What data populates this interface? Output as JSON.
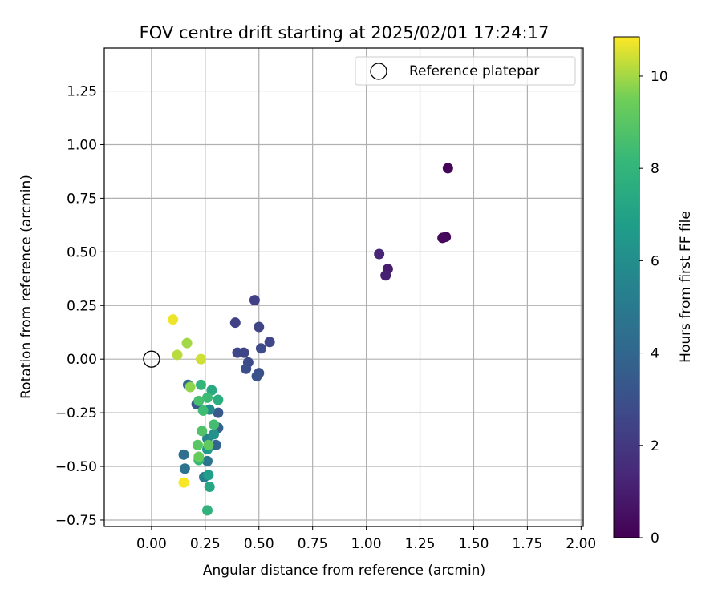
{
  "chart_data": {
    "type": "scatter",
    "title": "FOV centre drift starting at 2025/02/01 17:24:17",
    "xlabel": "Angular distance from reference (arcmin)",
    "ylabel": "Rotation from reference (arcmin)",
    "xlim": [
      -0.22,
      2.01
    ],
    "ylim": [
      -0.78,
      1.45
    ],
    "x_ticks": [
      0.0,
      0.25,
      0.5,
      0.75,
      1.0,
      1.25,
      1.5,
      1.75,
      2.0
    ],
    "x_tick_labels": [
      "0.00",
      "0.25",
      "0.50",
      "0.75",
      "1.00",
      "1.25",
      "1.50",
      "1.75",
      "2.00"
    ],
    "y_ticks": [
      -0.75,
      -0.5,
      -0.25,
      0.0,
      0.25,
      0.5,
      0.75,
      1.0,
      1.25
    ],
    "y_tick_labels": [
      "−0.75",
      "−0.50",
      "−0.25",
      "0.00",
      "0.25",
      "0.50",
      "0.75",
      "1.00",
      "1.25"
    ],
    "grid": true,
    "legend": {
      "position": "top-right",
      "entries": [
        {
          "label": "Reference platepar",
          "marker": "open-circle",
          "x": 0.0,
          "y": 0.0
        }
      ]
    },
    "colorbar": {
      "label": "Hours from first FF file",
      "colormap": "viridis",
      "range": [
        0,
        10.85
      ],
      "ticks": [
        0,
        2,
        4,
        6,
        8,
        10
      ],
      "tick_labels": [
        "0",
        "2",
        "4",
        "6",
        "8",
        "10"
      ]
    },
    "points": [
      {
        "x": 1.38,
        "y": 0.89,
        "c": 0.1
      },
      {
        "x": 1.37,
        "y": 0.57,
        "c": 0.2
      },
      {
        "x": 1.355,
        "y": 0.565,
        "c": 0.3
      },
      {
        "x": 1.1,
        "y": 0.42,
        "c": 1.0
      },
      {
        "x": 1.09,
        "y": 0.39,
        "c": 1.1
      },
      {
        "x": 1.06,
        "y": 0.49,
        "c": 1.3
      },
      {
        "x": 0.48,
        "y": 0.275,
        "c": 2.3
      },
      {
        "x": 0.39,
        "y": 0.17,
        "c": 2.4
      },
      {
        "x": 0.5,
        "y": 0.15,
        "c": 2.5
      },
      {
        "x": 0.55,
        "y": 0.08,
        "c": 2.6
      },
      {
        "x": 0.51,
        "y": 0.05,
        "c": 2.7
      },
      {
        "x": 0.4,
        "y": 0.03,
        "c": 2.6
      },
      {
        "x": 0.43,
        "y": 0.03,
        "c": 2.5
      },
      {
        "x": 0.45,
        "y": -0.015,
        "c": 2.8
      },
      {
        "x": 0.44,
        "y": -0.045,
        "c": 2.9
      },
      {
        "x": 0.5,
        "y": -0.065,
        "c": 3.0
      },
      {
        "x": 0.49,
        "y": -0.08,
        "c": 3.1
      },
      {
        "x": 0.21,
        "y": -0.21,
        "c": 3.3
      },
      {
        "x": 0.31,
        "y": -0.25,
        "c": 3.4
      },
      {
        "x": 0.31,
        "y": -0.32,
        "c": 3.8
      },
      {
        "x": 0.3,
        "y": -0.4,
        "c": 4.0
      },
      {
        "x": 0.17,
        "y": -0.12,
        "c": 4.2
      },
      {
        "x": 0.15,
        "y": -0.445,
        "c": 4.5
      },
      {
        "x": 0.155,
        "y": -0.51,
        "c": 4.6
      },
      {
        "x": 0.26,
        "y": -0.475,
        "c": 4.8
      },
      {
        "x": 0.245,
        "y": -0.55,
        "c": 5.2
      },
      {
        "x": 0.26,
        "y": -0.37,
        "c": 5.5
      },
      {
        "x": 0.27,
        "y": -0.235,
        "c": 5.8
      },
      {
        "x": 0.29,
        "y": -0.35,
        "c": 6.2
      },
      {
        "x": 0.26,
        "y": -0.42,
        "c": 6.6
      },
      {
        "x": 0.265,
        "y": -0.54,
        "c": 6.8
      },
      {
        "x": 0.27,
        "y": -0.595,
        "c": 7.2
      },
      {
        "x": 0.28,
        "y": -0.145,
        "c": 7.4
      },
      {
        "x": 0.31,
        "y": -0.19,
        "c": 7.6
      },
      {
        "x": 0.26,
        "y": -0.705,
        "c": 7.8
      },
      {
        "x": 0.23,
        "y": -0.12,
        "c": 8.0
      },
      {
        "x": 0.22,
        "y": -0.47,
        "c": 8.2
      },
      {
        "x": 0.26,
        "y": -0.18,
        "c": 8.3
      },
      {
        "x": 0.24,
        "y": -0.24,
        "c": 8.4
      },
      {
        "x": 0.29,
        "y": -0.305,
        "c": 8.5
      },
      {
        "x": 0.22,
        "y": -0.195,
        "c": 8.6
      },
      {
        "x": 0.235,
        "y": -0.335,
        "c": 8.8
      },
      {
        "x": 0.215,
        "y": -0.4,
        "c": 9.0
      },
      {
        "x": 0.265,
        "y": -0.4,
        "c": 9.2
      },
      {
        "x": 0.22,
        "y": -0.455,
        "c": 9.3
      },
      {
        "x": 0.18,
        "y": -0.13,
        "c": 9.8
      },
      {
        "x": 0.165,
        "y": 0.075,
        "c": 10.0
      },
      {
        "x": 0.12,
        "y": 0.02,
        "c": 10.2
      },
      {
        "x": 0.23,
        "y": 0.0,
        "c": 10.4
      },
      {
        "x": 0.1,
        "y": 0.185,
        "c": 10.7
      },
      {
        "x": 0.15,
        "y": -0.575,
        "c": 10.8
      }
    ]
  }
}
